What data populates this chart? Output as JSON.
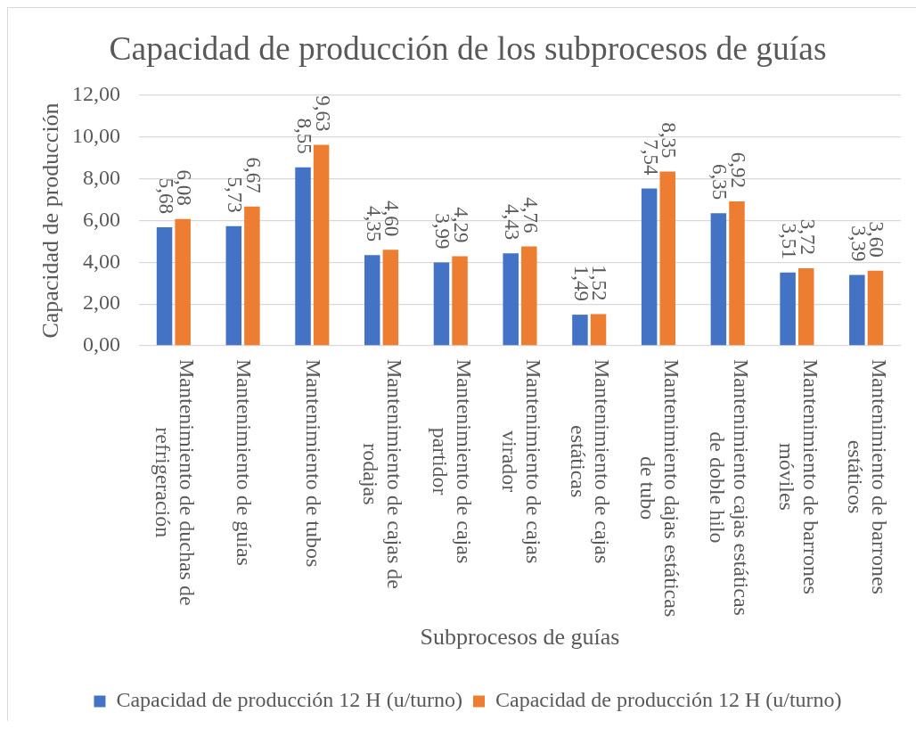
{
  "chart_data": {
    "type": "bar",
    "title": "Capacidad de producción de los subprocesos de guías",
    "xlabel": "Subprocesos de guías",
    "ylabel": "Capacidad de producción",
    "categories": [
      "Mantenimiento de duchas de refrigeración",
      "Mantenimiento de guías",
      "Mantenimiento de tubos",
      "Mantenimiento de cajas de rodajas",
      "Mantenimiento de cajas partidor",
      "Mantenimiento de cajas virador",
      "Mantenimiento de cajas estáticas",
      "Mantenimiento dajas estáticas de tubo",
      "Mantenimiento cajas estáticas de doble hilo",
      "Mantenimiento de barrones móviles",
      "Mantenimiento de barrones estáticos"
    ],
    "series": [
      {
        "name": "Capacidad de producción 12 H (u/turno)",
        "color": "#4472c4",
        "values": [
          5.68,
          5.73,
          8.55,
          4.35,
          3.99,
          4.43,
          1.49,
          7.54,
          6.35,
          3.51,
          3.39
        ],
        "value_labels": [
          "5,68",
          "5,73",
          "8,55",
          "4,35",
          "3,99",
          "4,43",
          "1,49",
          "7,54",
          "6,35",
          "3,51",
          "3,39"
        ]
      },
      {
        "name": "Capacidad de producción 12 H (u/turno)",
        "color": "#ed7d31",
        "values": [
          6.08,
          6.67,
          9.63,
          4.6,
          4.29,
          4.76,
          1.52,
          8.35,
          6.92,
          3.72,
          3.6
        ],
        "value_labels": [
          "6,08",
          "6,67",
          "9,63",
          "4,60",
          "4,29",
          "4,76",
          "1,52",
          "8,35",
          "6,92",
          "3,72",
          "3,60"
        ]
      }
    ],
    "ylim": [
      0,
      12
    ],
    "yticks": [
      {
        "value": 0,
        "label": "0,00"
      },
      {
        "value": 2,
        "label": "2,00"
      },
      {
        "value": 4,
        "label": "4,00"
      },
      {
        "value": 6,
        "label": "6,00"
      },
      {
        "value": 8,
        "label": "8,00"
      },
      {
        "value": 10,
        "label": "10,00"
      },
      {
        "value": 12,
        "label": "12,00"
      }
    ],
    "grid": "y",
    "legend": "bottom"
  }
}
